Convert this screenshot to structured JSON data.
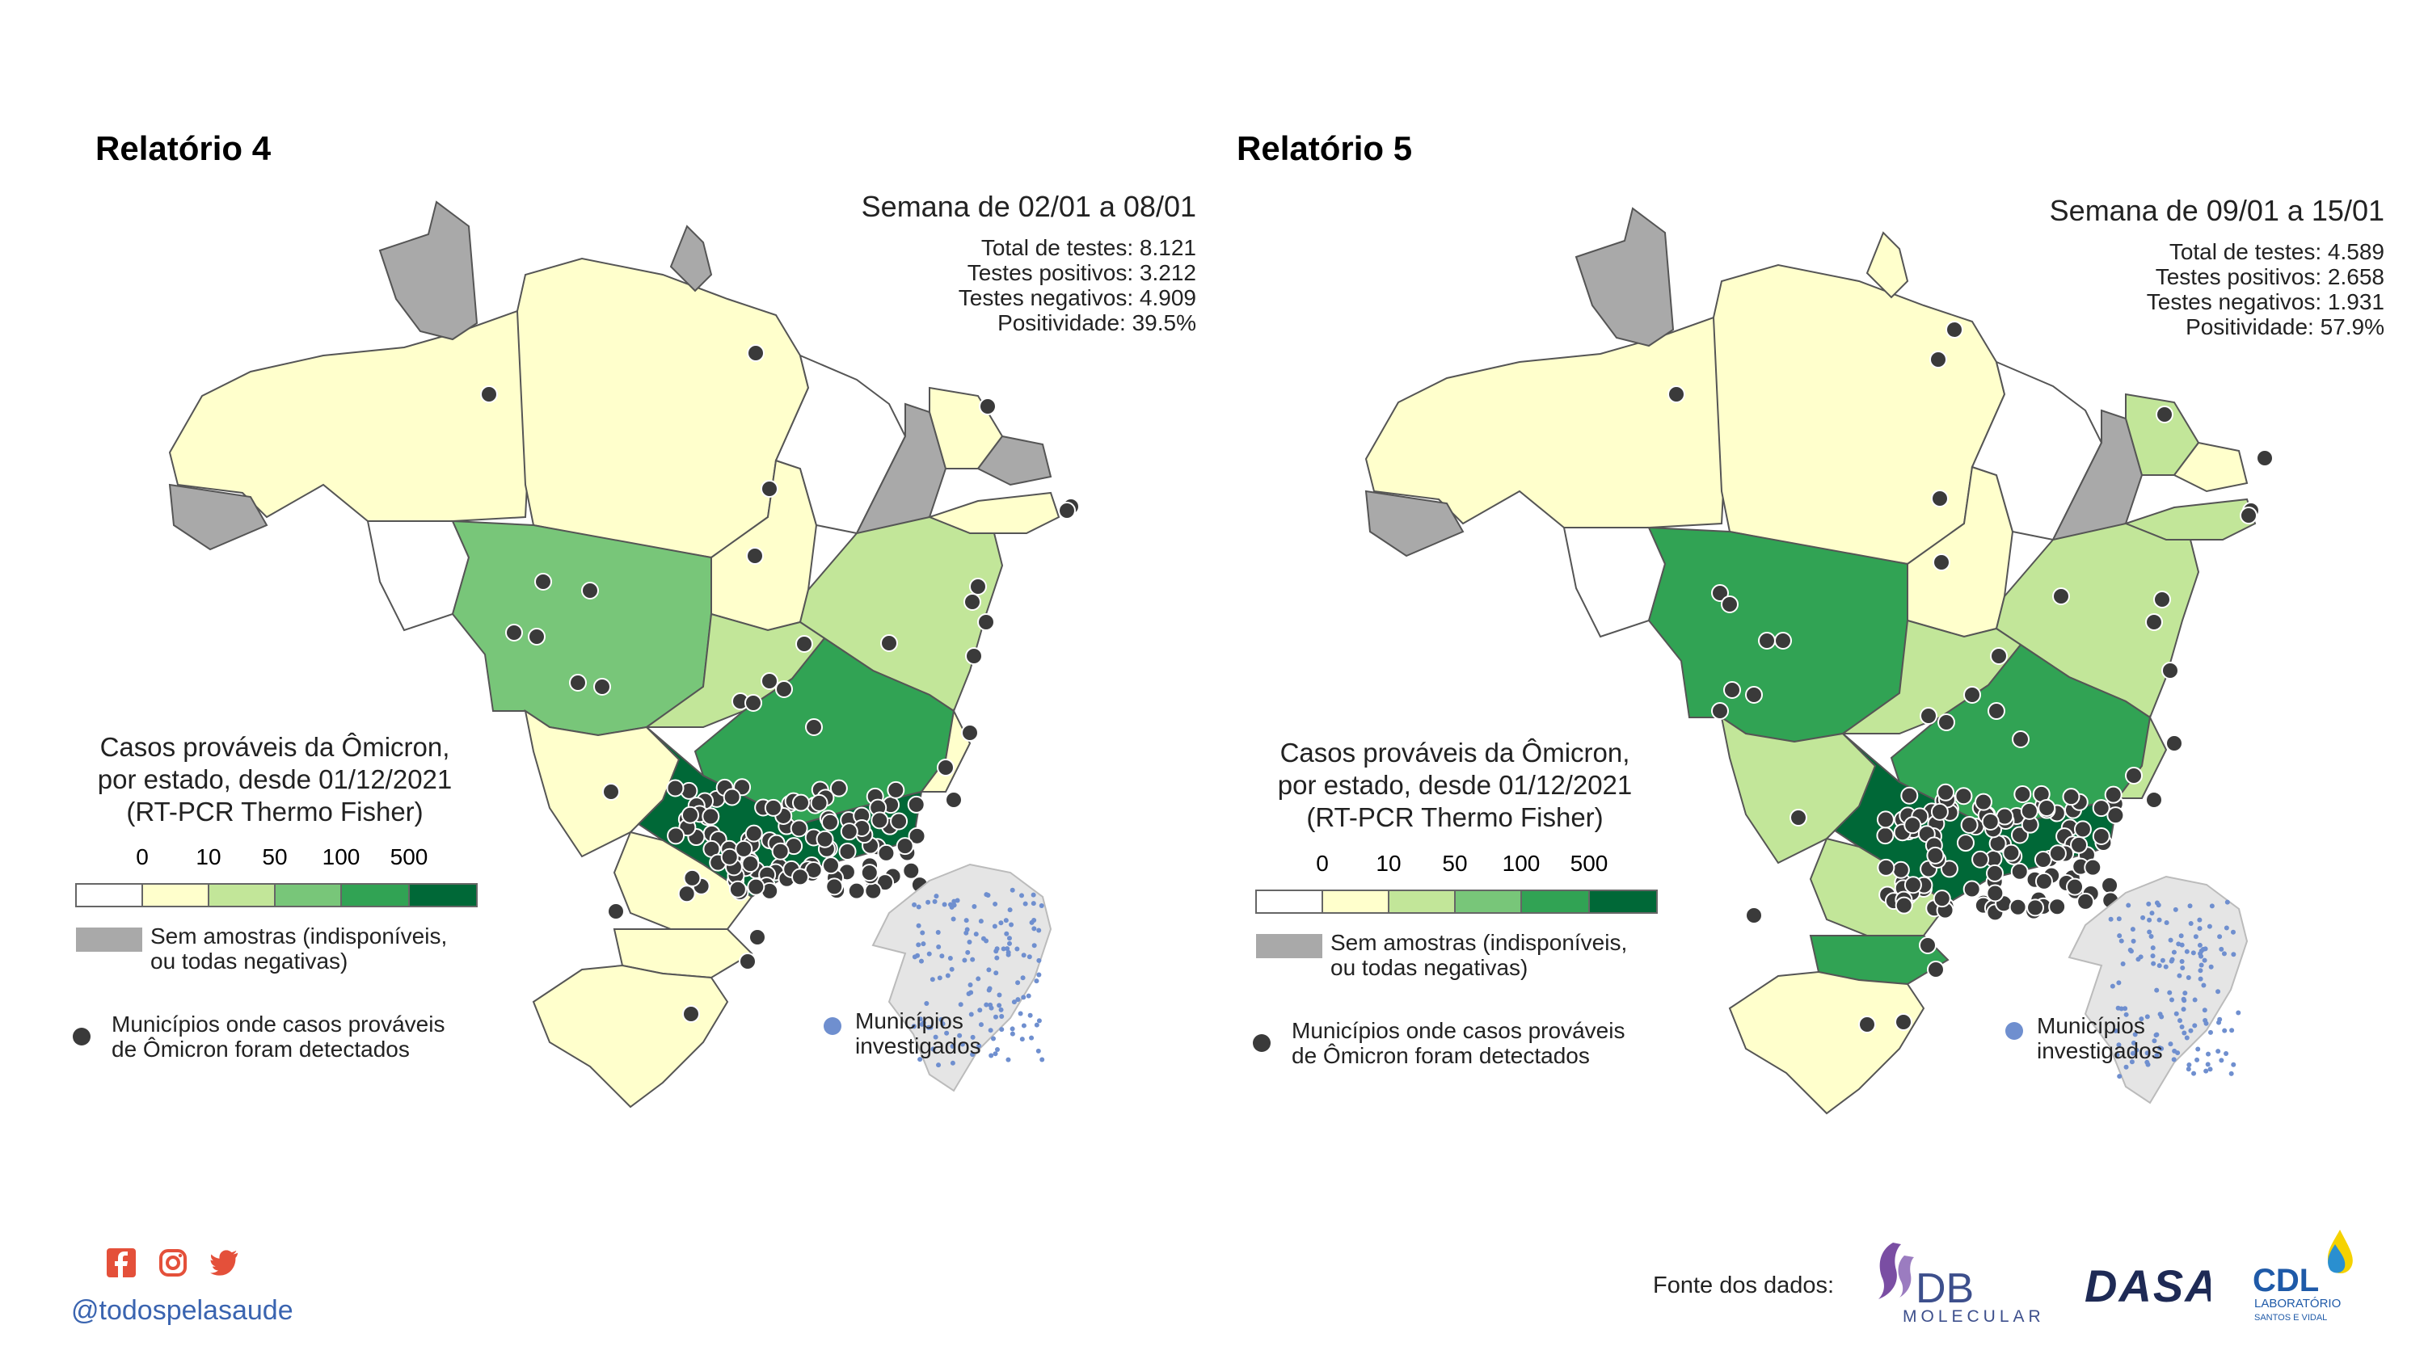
{
  "panels": [
    {
      "title": "Relatório 4",
      "week": "Semana de 02/01 a 08/01",
      "stats": [
        "Total de testes: 8.121",
        "Testes positivos: 3.212",
        "Testes negativos: 4.909",
        "Positividade: 39.5%"
      ]
    },
    {
      "title": "Relatório 5",
      "week": "Semana de 09/01 a 15/01",
      "stats": [
        "Total de testes: 4.589",
        "Testes positivos: 2.658",
        "Testes negativos: 1.931",
        "Positividade: 57.9%"
      ]
    }
  ],
  "legend": {
    "title_lines": [
      "Casos prováveis da Ômicron,",
      "por estado, desde 01/12/2021",
      "(RT-PCR Thermo Fisher)"
    ],
    "breaks": [
      "0",
      "10",
      "50",
      "100",
      "500"
    ],
    "colors": [
      "#ffffff",
      "#ffffcc",
      "#c2e699",
      "#78c679",
      "#31a354",
      "#006837"
    ],
    "no_sample_color": "#a9a9a9",
    "no_sample_lines": [
      "Sem amostras (indisponíveis,",
      "ou todas negativas)"
    ],
    "municipality_lines": [
      "Municípios onde casos prováveis",
      "de Ômicron foram detectados"
    ],
    "investigated_lines": [
      "Municípios",
      "investigados"
    ],
    "dot_color": "#3a3a3a",
    "investigated_color": "#6f8fcf"
  },
  "footer": {
    "handle": "@todospelasaude",
    "source_label": "Fonte dos dados:",
    "social_icons": [
      "facebook-icon",
      "instagram-icon",
      "twitter-icon"
    ],
    "logos": [
      {
        "name": "db-molecular-logo",
        "text": "DB",
        "subtext": "MOLECULAR"
      },
      {
        "name": "dasa-logo",
        "text": "DASA"
      },
      {
        "name": "cdl-logo",
        "text": "CDL",
        "subtext": "LABORATÓRIO",
        "subtext2": "SANTOS E VIDAL"
      }
    ]
  }
}
